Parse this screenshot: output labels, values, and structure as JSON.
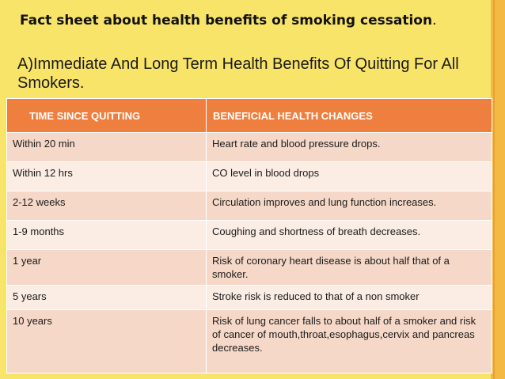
{
  "title": {
    "line": "Fact sheet about health benefits of smoking cessation",
    "dot": "."
  },
  "subtitle": "A)Immediate And Long Term Health Benefits Of Quitting For All Smokers.",
  "table": {
    "headers": [
      "TIME SINCE QUITTING",
      "BENEFICIAL HEALTH CHANGES"
    ],
    "rows": [
      {
        "time": "Within 20 min",
        "change": "Heart rate and blood pressure drops."
      },
      {
        "time": "Within 12 hrs",
        "change": "CO level in blood drops"
      },
      {
        "time": "2-12 weeks",
        "change": "Circulation improves and lung function increases."
      },
      {
        "time": "1-9 months",
        "change": "Coughing and shortness of breath decreases."
      },
      {
        "time": "1 year",
        "change": "Risk of coronary heart disease is about half that of a smoker."
      },
      {
        "time": "5 years",
        "change": "Stroke risk is reduced to that of a non smoker"
      },
      {
        "time": "10 years",
        "change": "Risk of lung cancer falls to about half of a smoker and risk of cancer of mouth,throat,esophagus,cervix and pancreas decreases."
      }
    ]
  },
  "colors": {
    "background": "#f9e46a",
    "header": "#ef7f3f",
    "row_odd": "#f6d8c8",
    "row_even": "#fbece4",
    "accent_bar": "#f3b943"
  }
}
